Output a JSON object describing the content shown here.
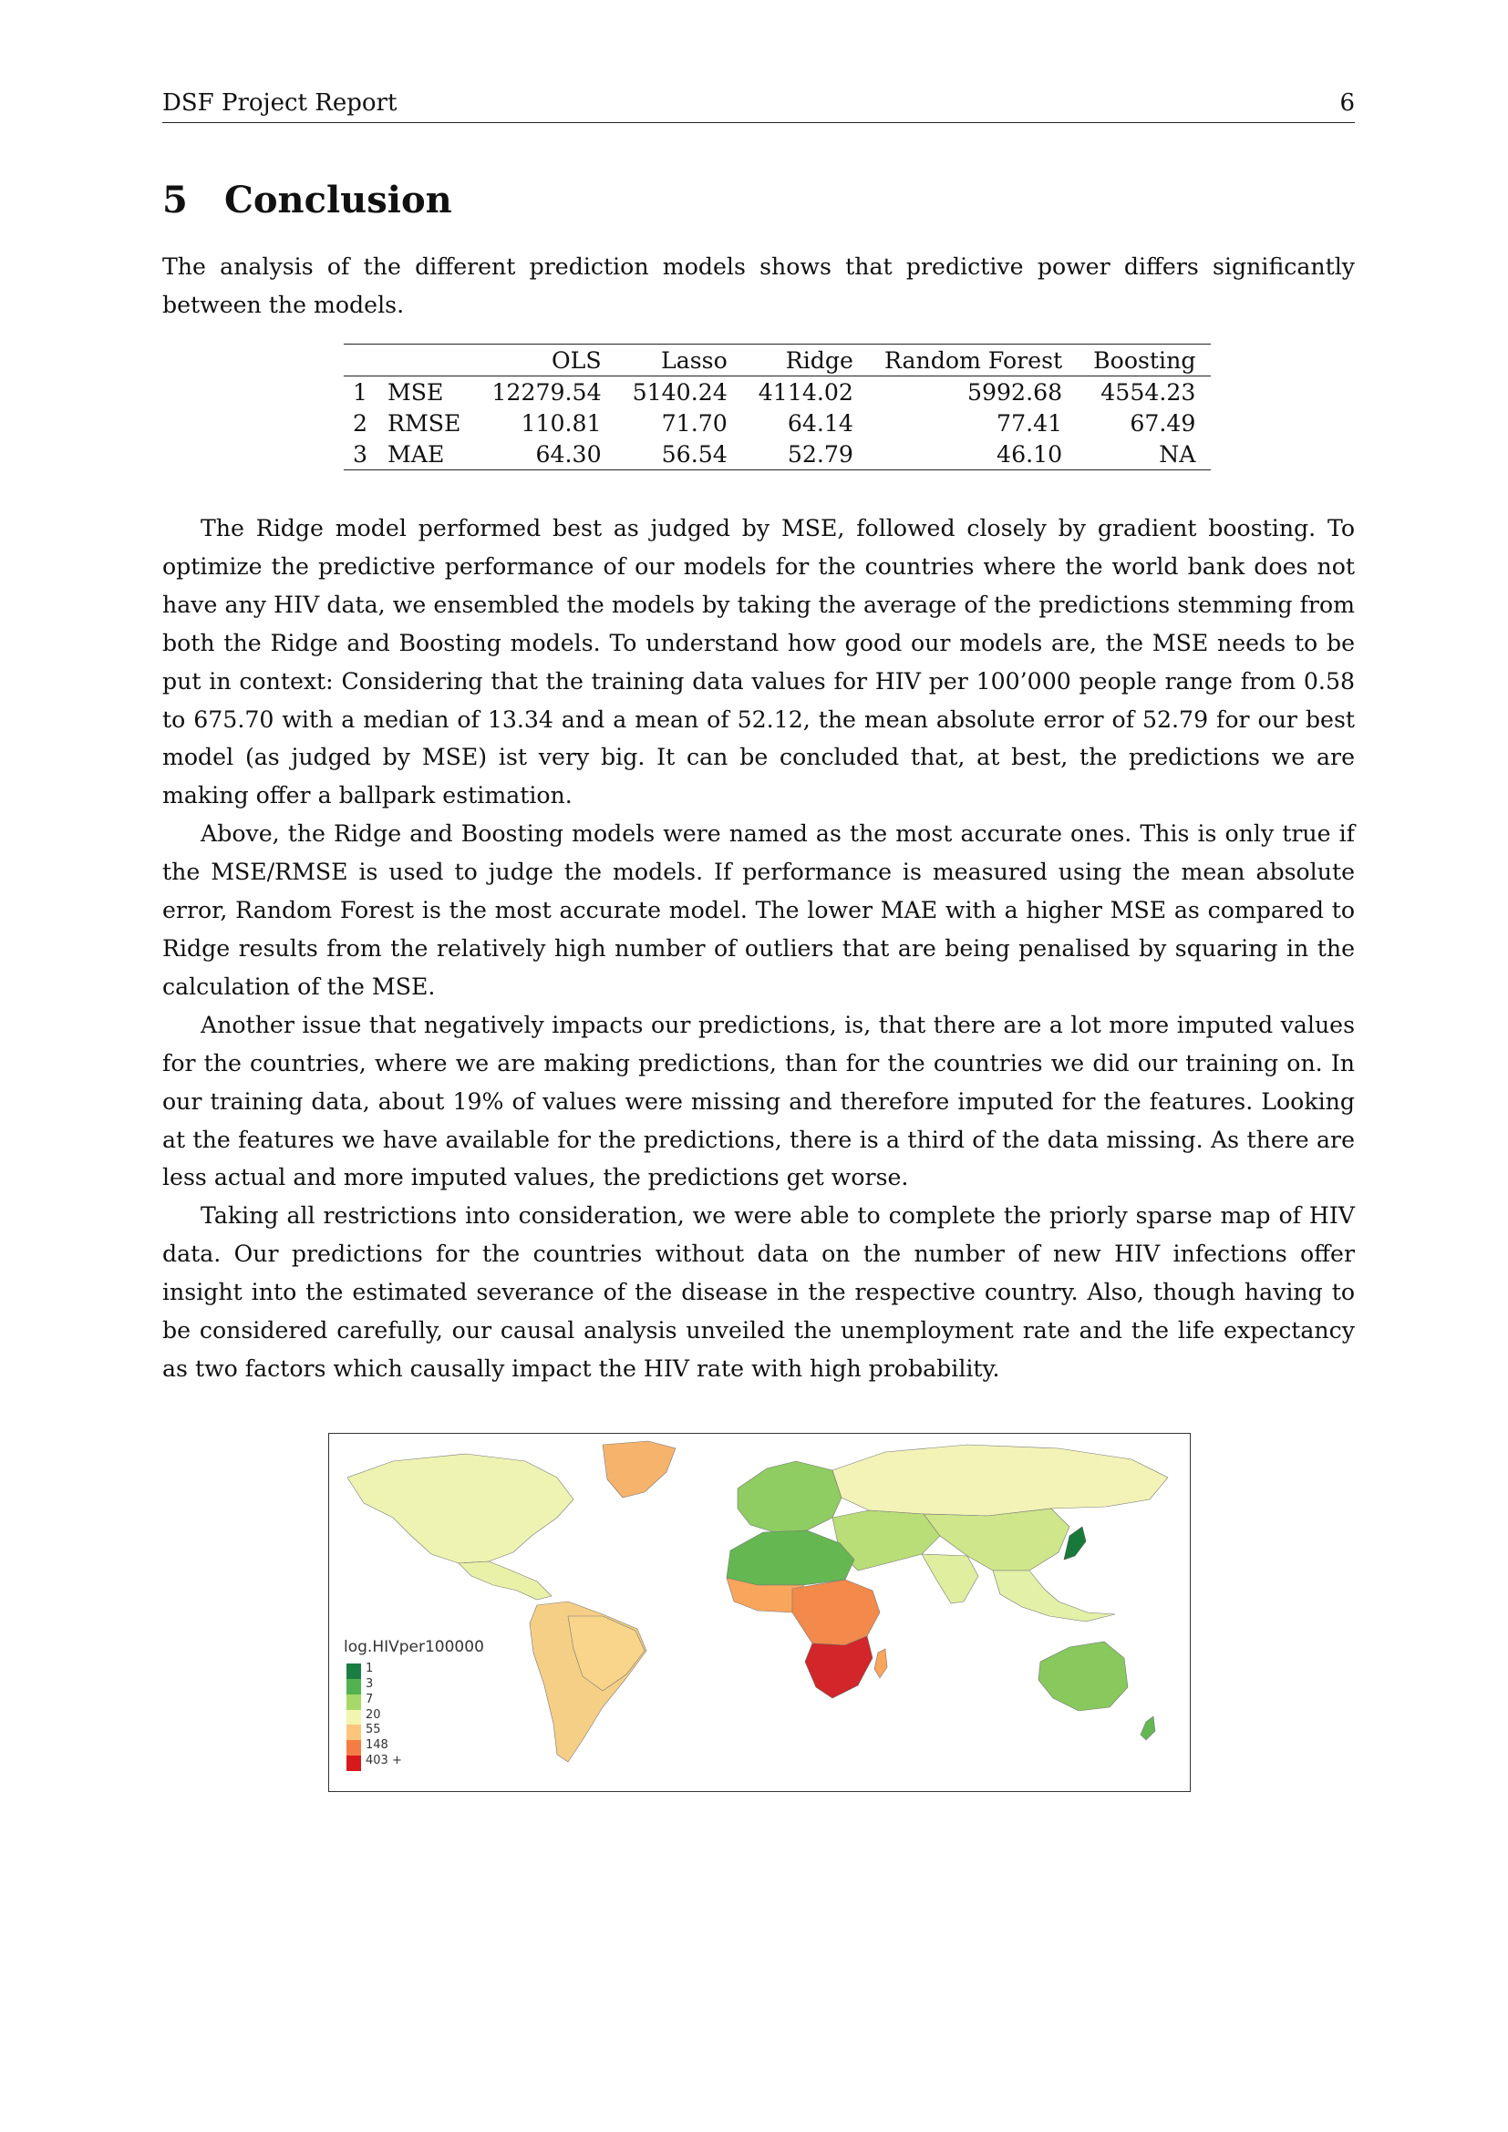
{
  "header": {
    "title": "DSF Project Report",
    "page_number": "6"
  },
  "section": {
    "number": "5",
    "title": "Conclusion"
  },
  "intro": "The analysis of the different prediction models shows that predictive power differs significantly between the models.",
  "table": {
    "columns": [
      "",
      "",
      "OLS",
      "Lasso",
      "Ridge",
      "Random Forest",
      "Boosting"
    ],
    "rows": [
      [
        "1",
        "MSE",
        "12279.54",
        "5140.24",
        "4114.02",
        "5992.68",
        "4554.23"
      ],
      [
        "2",
        "RMSE",
        "110.81",
        "71.70",
        "64.14",
        "77.41",
        "67.49"
      ],
      [
        "3",
        "MAE",
        "64.30",
        "56.54",
        "52.79",
        "46.10",
        "NA"
      ]
    ]
  },
  "paragraphs": [
    "The Ridge model performed best as judged by MSE, followed closely by gradient boosting. To optimize the predictive performance of our models for the countries where the world bank does not have any HIV data, we ensembled the models by taking the average of the predictions stemming from both the Ridge and Boosting models. To understand how good our models are, the MSE needs to be put in context: Considering that the training data values for HIV per 100’000 people range from 0.58 to 675.70 with a median of 13.34 and a mean of 52.12, the mean absolute error of 52.79 for our best model (as judged by MSE) ist very big. It can be concluded that, at best, the predictions we are making offer a ballpark estimation.",
    "Above, the Ridge and Boosting models were named as the most accurate ones. This is only true if the MSE/RMSE is used to judge the models. If performance is measured using the mean absolute error, Random Forest is the most accurate model. The lower MAE with a higher MSE as compared to Ridge results from the relatively high number of outliers that are being penalised by squaring in the calculation of the MSE.",
    "Another issue that negatively impacts our predictions, is, that there are a lot more imputed values for the countries, where we are making predictions, than for the countries we did our training on. In our training data, about 19% of values were missing and therefore imputed for the features. Looking at the features we have available for the predictions, there is a third of the data missing. As there are less actual and more imputed values, the predictions get worse.",
    "Taking all restrictions into consideration, we were able to complete the priorly sparse map of HIV data. Our predictions for the countries without data on the number of new HIV infections offer insight into the estimated severance of the disease in the respective country. Also, though having to be considered carefully, our causal analysis unveiled the unemployment rate and the life expectancy as two factors which causally impact the HIV rate with high probability."
  ],
  "map": {
    "legend_title": "log.HIVper100000",
    "legend_labels": [
      "1",
      "3",
      "7",
      "20",
      "55",
      "148",
      "403 +"
    ],
    "legend_colors": [
      "#1a7d43",
      "#53b24f",
      "#a6d86a",
      "#f2f4b0",
      "#fdc57c",
      "#f57d44",
      "#d7191c"
    ],
    "colors": {
      "north_america": "#eef3b2",
      "greenland": "#f6b36b",
      "central_america": "#e9f1a8",
      "south_america": "#f6cf86",
      "brazil": "#f8d58a",
      "europe": "#8fcc62",
      "russia": "#f3f3b7",
      "north_africa": "#65b752",
      "west_africa": "#f9a55b",
      "central_africa": "#f3894a",
      "southern_africa": "#d2262a",
      "middle_east": "#b9dd77",
      "south_asia": "#dfee9f",
      "china": "#cfe68b",
      "japan": "#177a3b",
      "southeast_asia": "#e3f0a8",
      "australia": "#88c85c"
    }
  }
}
